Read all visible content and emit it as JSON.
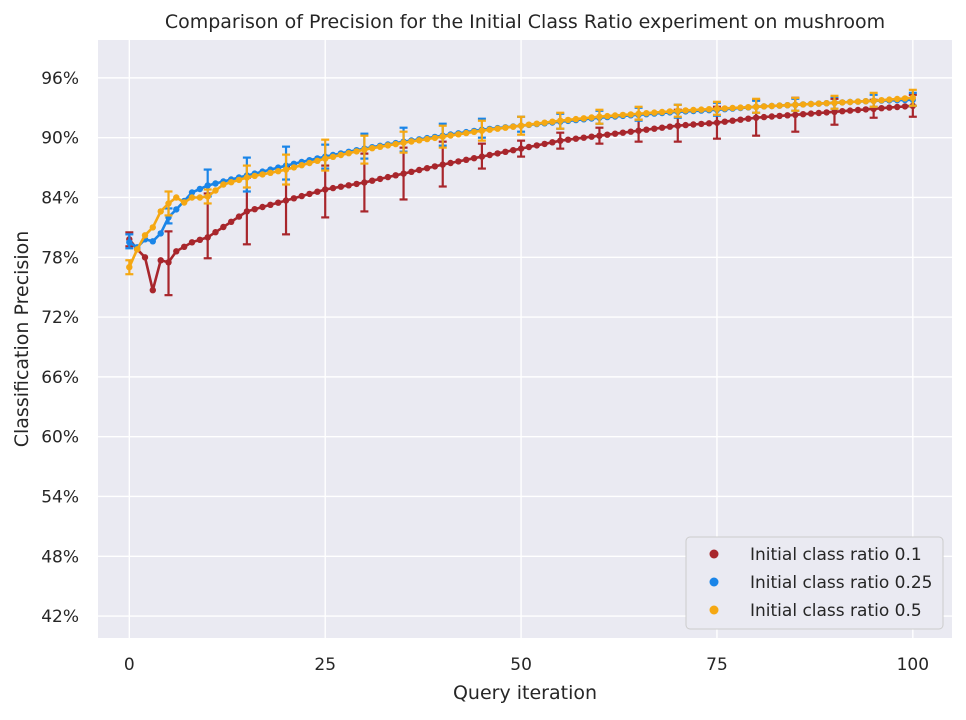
{
  "chart_data": {
    "type": "line",
    "title": "Comparison of Precision for the Initial Class Ratio experiment on mushroom",
    "xlabel": "Query iteration",
    "ylabel": "Classification Precision",
    "xlim": [
      -4,
      105
    ],
    "ylim": [
      39.8,
      99.8
    ],
    "xticks": [
      0,
      25,
      50,
      75,
      100
    ],
    "xtick_labels": [
      "0",
      "25",
      "50",
      "75",
      "100"
    ],
    "yticks": [
      42,
      48,
      54,
      60,
      66,
      72,
      78,
      84,
      90,
      96
    ],
    "ytick_labels": [
      "42%",
      "48%",
      "54%",
      "60%",
      "66%",
      "72%",
      "78%",
      "84%",
      "90%",
      "96%"
    ],
    "grid": true,
    "background": "#eaeaf2",
    "legend_position": "lower-right",
    "series": [
      {
        "name": "Initial class ratio 0.1",
        "color": "#a8262c",
        "anchors_x": [
          0,
          1,
          2,
          3,
          4,
          5,
          6,
          8,
          10,
          15,
          20,
          25,
          30,
          35,
          40,
          45,
          50,
          55,
          60,
          65,
          70,
          75,
          80,
          85,
          90,
          95,
          100
        ],
        "anchors_y": [
          79.8,
          78.8,
          78.0,
          74.7,
          77.7,
          77.5,
          78.6,
          79.5,
          80.0,
          82.6,
          83.7,
          84.8,
          85.5,
          86.4,
          87.3,
          88.1,
          88.9,
          89.7,
          90.2,
          90.7,
          91.2,
          91.5,
          92.0,
          92.3,
          92.6,
          92.9,
          93.2
        ],
        "error_bars": [
          {
            "x": 0,
            "low": 79.1,
            "high": 80.5
          },
          {
            "x": 5,
            "low": 74.2,
            "high": 80.6
          },
          {
            "x": 10,
            "low": 77.9,
            "high": 84.4
          },
          {
            "x": 15,
            "low": 79.3,
            "high": 86.0
          },
          {
            "x": 20,
            "low": 80.3,
            "high": 87.1
          },
          {
            "x": 25,
            "low": 82.0,
            "high": 87.2
          },
          {
            "x": 30,
            "low": 82.6,
            "high": 88.4
          },
          {
            "x": 35,
            "low": 83.8,
            "high": 89.0
          },
          {
            "x": 40,
            "low": 85.1,
            "high": 89.6
          },
          {
            "x": 45,
            "low": 86.9,
            "high": 89.4
          },
          {
            "x": 50,
            "low": 88.1,
            "high": 89.7
          },
          {
            "x": 55,
            "low": 88.9,
            "high": 90.5
          },
          {
            "x": 60,
            "low": 89.4,
            "high": 91.0
          },
          {
            "x": 65,
            "low": 89.6,
            "high": 91.8
          },
          {
            "x": 70,
            "low": 89.6,
            "high": 92.8
          },
          {
            "x": 75,
            "low": 89.9,
            "high": 93.1
          },
          {
            "x": 80,
            "low": 90.2,
            "high": 93.8
          },
          {
            "x": 85,
            "low": 90.6,
            "high": 94.0
          },
          {
            "x": 90,
            "low": 91.3,
            "high": 93.9
          },
          {
            "x": 95,
            "low": 92.0,
            "high": 93.8
          },
          {
            "x": 100,
            "low": 92.1,
            "high": 94.3
          }
        ]
      },
      {
        "name": "Initial class ratio 0.25",
        "color": "#1a85e8",
        "anchors_x": [
          0,
          1,
          2,
          3,
          4,
          5,
          6,
          8,
          10,
          15,
          20,
          25,
          30,
          35,
          40,
          45,
          50,
          55,
          60,
          65,
          70,
          75,
          80,
          85,
          90,
          95,
          100
        ],
        "anchors_y": [
          79.5,
          79.0,
          79.8,
          79.6,
          80.4,
          82.0,
          82.8,
          84.5,
          85.2,
          86.2,
          87.2,
          88.1,
          88.9,
          89.6,
          90.2,
          90.8,
          91.2,
          91.6,
          92.0,
          92.3,
          92.6,
          92.8,
          93.1,
          93.3,
          93.5,
          93.7,
          93.8
        ],
        "error_bars": [
          {
            "x": 0,
            "low": 78.9,
            "high": 80.3
          },
          {
            "x": 5,
            "low": 81.4,
            "high": 82.9
          },
          {
            "x": 10,
            "low": 84.1,
            "high": 86.8
          },
          {
            "x": 15,
            "low": 84.6,
            "high": 88.0
          },
          {
            "x": 20,
            "low": 85.8,
            "high": 89.1
          },
          {
            "x": 25,
            "low": 86.9,
            "high": 89.3
          },
          {
            "x": 30,
            "low": 87.9,
            "high": 90.4
          },
          {
            "x": 35,
            "low": 88.6,
            "high": 91.0
          },
          {
            "x": 40,
            "low": 89.2,
            "high": 91.4
          },
          {
            "x": 45,
            "low": 90.0,
            "high": 91.9
          },
          {
            "x": 50,
            "low": 90.6,
            "high": 92.1
          },
          {
            "x": 55,
            "low": 90.9,
            "high": 92.4
          },
          {
            "x": 60,
            "low": 91.4,
            "high": 92.7
          },
          {
            "x": 65,
            "low": 91.7,
            "high": 93.0
          },
          {
            "x": 70,
            "low": 92.0,
            "high": 93.3
          },
          {
            "x": 75,
            "low": 92.2,
            "high": 93.5
          },
          {
            "x": 80,
            "low": 92.5,
            "high": 93.7
          },
          {
            "x": 85,
            "low": 92.7,
            "high": 93.9
          },
          {
            "x": 90,
            "low": 92.9,
            "high": 94.1
          },
          {
            "x": 95,
            "low": 93.1,
            "high": 94.3
          },
          {
            "x": 100,
            "low": 93.2,
            "high": 94.5
          }
        ]
      },
      {
        "name": "Initial class ratio 0.5",
        "color": "#f5a813",
        "anchors_x": [
          0,
          1,
          2,
          3,
          4,
          5,
          6,
          7,
          8,
          9,
          10,
          12,
          15,
          20,
          25,
          30,
          35,
          40,
          45,
          50,
          55,
          60,
          65,
          70,
          75,
          80,
          85,
          90,
          95,
          100
        ],
        "anchors_y": [
          77.0,
          78.8,
          80.2,
          81.0,
          82.6,
          83.4,
          84.0,
          83.5,
          84.0,
          84.0,
          84.1,
          85.3,
          86.0,
          86.8,
          87.9,
          88.8,
          89.5,
          90.1,
          90.7,
          91.2,
          91.7,
          92.1,
          92.4,
          92.7,
          92.9,
          93.1,
          93.3,
          93.5,
          93.7,
          94.0
        ],
        "error_bars": [
          {
            "x": 0,
            "low": 76.3,
            "high": 77.7
          },
          {
            "x": 5,
            "low": 82.2,
            "high": 84.6
          },
          {
            "x": 10,
            "low": 83.4,
            "high": 84.8
          },
          {
            "x": 15,
            "low": 85.0,
            "high": 87.2
          },
          {
            "x": 20,
            "low": 85.3,
            "high": 88.3
          },
          {
            "x": 25,
            "low": 86.7,
            "high": 89.8
          },
          {
            "x": 30,
            "low": 87.4,
            "high": 90.2
          },
          {
            "x": 35,
            "low": 88.5,
            "high": 90.6
          },
          {
            "x": 40,
            "low": 89.0,
            "high": 91.2
          },
          {
            "x": 45,
            "low": 89.7,
            "high": 91.7
          },
          {
            "x": 50,
            "low": 90.3,
            "high": 92.1
          },
          {
            "x": 55,
            "low": 90.9,
            "high": 92.5
          },
          {
            "x": 60,
            "low": 91.4,
            "high": 92.8
          },
          {
            "x": 65,
            "low": 91.8,
            "high": 93.1
          },
          {
            "x": 70,
            "low": 92.1,
            "high": 93.3
          },
          {
            "x": 75,
            "low": 92.3,
            "high": 93.6
          },
          {
            "x": 80,
            "low": 92.5,
            "high": 93.9
          },
          {
            "x": 85,
            "low": 92.7,
            "high": 94.0
          },
          {
            "x": 90,
            "low": 92.9,
            "high": 94.2
          },
          {
            "x": 95,
            "low": 93.1,
            "high": 94.5
          },
          {
            "x": 100,
            "low": 93.2,
            "high": 94.8
          }
        ]
      }
    ]
  }
}
